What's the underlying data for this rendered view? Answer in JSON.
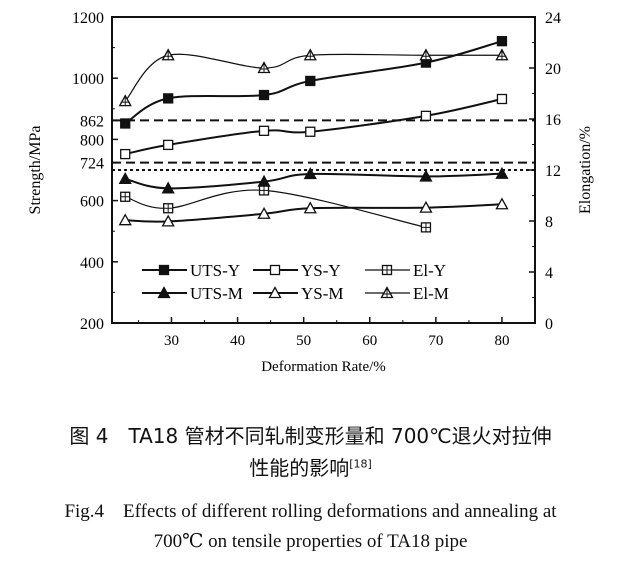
{
  "chart_data": {
    "type": "line",
    "xlabel": "Deformation Rate/%",
    "ylabel": "Strength/MPa",
    "y2label": "Elongation/%",
    "xlim": [
      21,
      85
    ],
    "ylim": [
      200,
      1200
    ],
    "y2lim": [
      0,
      24
    ],
    "xticks": [
      30,
      40,
      50,
      60,
      70,
      80
    ],
    "yticks": [
      200,
      400,
      600,
      724,
      800,
      862,
      1000,
      1200
    ],
    "y2ticks": [
      0,
      4,
      8,
      12,
      16,
      20,
      24
    ],
    "reference_lines": [
      {
        "axis": "left",
        "value": 862,
        "style": "dashed"
      },
      {
        "axis": "left",
        "value": 724,
        "style": "dashed"
      },
      {
        "axis": "right",
        "value": 12,
        "style": "dotted"
      }
    ],
    "legend": "bottom-left",
    "series": [
      {
        "name": "UTS-Y",
        "axis": "left",
        "marker": "filled-square",
        "x": [
          23,
          29.5,
          44,
          51,
          68.5,
          80
        ],
        "values": [
          852,
          934,
          945,
          991,
          1051,
          1121
        ]
      },
      {
        "name": "YS-Y",
        "axis": "left",
        "marker": "open-square",
        "x": [
          23,
          29.5,
          44,
          51,
          68.5,
          80
        ],
        "values": [
          752,
          782,
          828,
          825,
          877,
          932
        ]
      },
      {
        "name": "El-Y",
        "axis": "right",
        "marker": "crossed-square",
        "x": [
          23,
          29.5,
          44,
          68.5
        ],
        "values": [
          9.9,
          9.0,
          10.4,
          7.5
        ]
      },
      {
        "name": "UTS-M",
        "axis": "left",
        "marker": "filled-triangle",
        "x": [
          23,
          29.5,
          44,
          51,
          68.5,
          80
        ],
        "values": [
          671,
          640,
          662,
          687,
          679,
          688
        ]
      },
      {
        "name": "YS-M",
        "axis": "left",
        "marker": "open-triangle",
        "x": [
          23,
          29.5,
          44,
          51,
          68.5,
          80
        ],
        "values": [
          536,
          532,
          557,
          575,
          577,
          588
        ]
      },
      {
        "name": "El-M",
        "axis": "right",
        "marker": "crossed-triangle",
        "x": [
          23,
          29.5,
          44,
          51,
          68.5,
          80
        ],
        "values": [
          17.4,
          21.0,
          20.0,
          21.0,
          21.0,
          21.0
        ]
      }
    ]
  },
  "caption": {
    "cn_line1": "图 4　TA18 管材不同轧制变形量和 700℃退火对拉伸",
    "cn_line2": "性能的影响",
    "cn_ref": "[18]",
    "en_line1": "Fig.4　Effects of different rolling deformations and annealing at",
    "en_line2": "700℃ on tensile properties of TA18 pipe"
  }
}
